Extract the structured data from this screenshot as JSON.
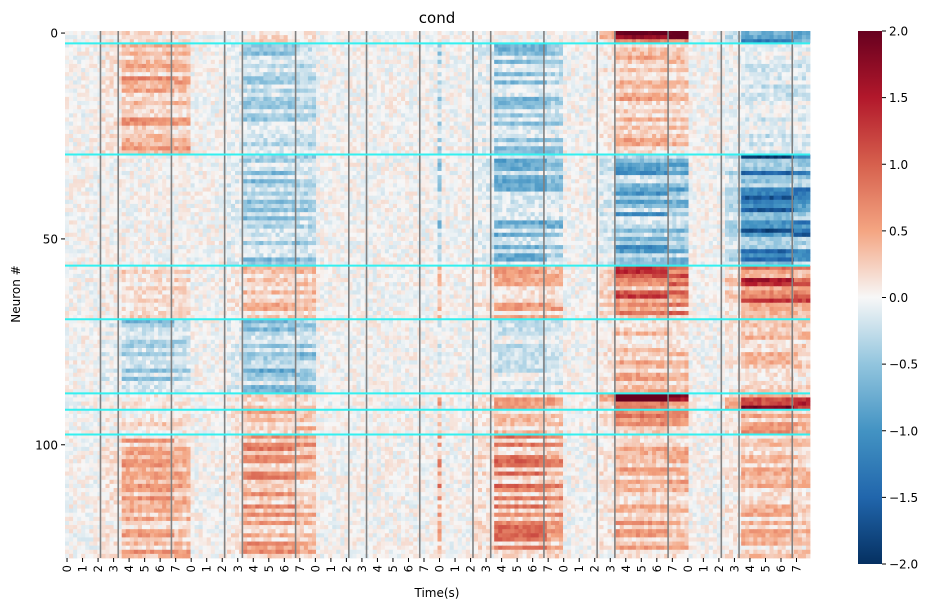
{
  "chart_data": {
    "type": "heatmap",
    "title": "cond",
    "xlabel": "Time(s)",
    "ylabel": "Neuron #",
    "n_neurons": 128,
    "n_time_bins": 184,
    "y_ticks": [
      0,
      50,
      100
    ],
    "x_tick_labels": [
      "0",
      "1",
      "2",
      "3",
      "4",
      "5",
      "6",
      "7",
      "0",
      "1",
      "2",
      "3",
      "4",
      "5",
      "6",
      "7",
      "0",
      "1",
      "2",
      "3",
      "4",
      "5",
      "6",
      "7",
      "0",
      "1",
      "2",
      "3",
      "4",
      "5",
      "6",
      "7",
      "0",
      "1",
      "2",
      "3",
      "4",
      "5",
      "6",
      "7",
      "0",
      "1",
      "2",
      "3",
      "4",
      "5",
      "6",
      "7"
    ],
    "colorbar": {
      "vmin": -2.0,
      "vmax": 2.0,
      "colormap": "RdBu_r",
      "tick_values": [
        2.0,
        1.5,
        1.0,
        0.5,
        0.0,
        -0.5,
        -1.0,
        -1.5,
        -2.0
      ],
      "tick_labels": [
        "2.0",
        "1.5",
        "1.0",
        "0.5",
        "0.0",
        "−0.5",
        "−1.0",
        "−1.5",
        "−2.0"
      ]
    },
    "trial_panels": 6,
    "panel_time_range_s": [
      0,
      7
    ],
    "event_lines_s": [
      2,
      3,
      6
    ],
    "event_line_color": "#808080",
    "group_boundary_rows": [
      3,
      30,
      57,
      70,
      88,
      92,
      98
    ],
    "group_line_color": "#33f0f0",
    "groups": [
      {
        "rows": [
          0,
          3
        ],
        "pattern": [
          0.2,
          0.2,
          0.0,
          0.0,
          1.8,
          -1.0,
          -1.2
        ]
      },
      {
        "rows": [
          3,
          30
        ],
        "pattern": [
          0.5,
          -0.4,
          0.0,
          -0.5,
          0.4,
          -0.2,
          -0.2
        ]
      },
      {
        "rows": [
          30,
          57
        ],
        "pattern": [
          0.0,
          -0.5,
          0.0,
          -0.6,
          -0.8,
          -1.4,
          -1.3
        ]
      },
      {
        "rows": [
          57,
          70
        ],
        "pattern": [
          0.2,
          0.4,
          0.0,
          0.5,
          1.0,
          1.2,
          1.6
        ]
      },
      {
        "rows": [
          70,
          88
        ],
        "pattern": [
          -0.5,
          -0.6,
          0.0,
          -0.2,
          0.4,
          0.3,
          -0.6
        ]
      },
      {
        "rows": [
          88,
          92
        ],
        "pattern": [
          0.2,
          0.3,
          0.0,
          0.5,
          2.0,
          2.0,
          1.8
        ]
      },
      {
        "rows": [
          92,
          98
        ],
        "pattern": [
          0.2,
          0.4,
          0.0,
          0.3,
          0.6,
          0.6,
          1.2
        ]
      },
      {
        "rows": [
          98,
          128
        ],
        "pattern": [
          0.5,
          0.6,
          0.0,
          0.7,
          0.5,
          0.4,
          0.5
        ]
      }
    ]
  }
}
